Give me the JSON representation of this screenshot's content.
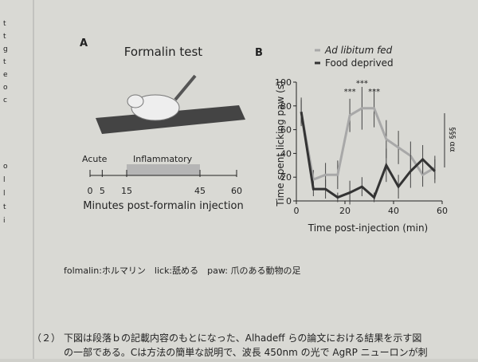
{
  "margin_letters": [
    "t",
    "t",
    "g",
    "t",
    "e",
    "o",
    "c",
    "o",
    "l",
    "l",
    "t",
    "i"
  ],
  "panel_a": {
    "label": "A",
    "title": "Formalin test",
    "phases": [
      "Acute",
      "Inflammatory"
    ],
    "timeline_ticks": [
      0,
      5,
      15,
      45,
      60
    ],
    "xlabel": "Minutes post-formalin injection"
  },
  "chart_data": {
    "type": "line",
    "panel_label": "B",
    "xlabel": "Time post-injection (min)",
    "ylabel": "Time spent licking paw (s)",
    "xlim": [
      0,
      60
    ],
    "xticks": [
      0,
      20,
      40,
      60
    ],
    "ylim": [
      0,
      100
    ],
    "yticks": [
      0,
      20,
      40,
      60,
      80,
      100
    ],
    "series": [
      {
        "name": "Ad libitum fed",
        "color": "#a8a8a8",
        "x": [
          2,
          7,
          12,
          17,
          22,
          27,
          32,
          37,
          42,
          47,
          52,
          57
        ],
        "values": [
          75,
          18,
          22,
          22,
          72,
          78,
          78,
          52,
          45,
          38,
          22,
          28
        ],
        "errors": [
          12,
          8,
          10,
          12,
          14,
          18,
          16,
          16,
          14,
          12,
          10,
          10
        ]
      },
      {
        "name": "Food deprived",
        "color": "#333333",
        "x": [
          2,
          7,
          12,
          17,
          22,
          27,
          32,
          37,
          42,
          47,
          52,
          57
        ],
        "values": [
          75,
          10,
          10,
          3,
          7,
          12,
          3,
          30,
          12,
          25,
          35,
          25
        ],
        "errors": [
          10,
          6,
          8,
          4,
          10,
          8,
          4,
          14,
          10,
          14,
          12,
          10
        ]
      }
    ],
    "annotations": [
      {
        "x": 22,
        "y": 90,
        "text": "***"
      },
      {
        "x": 27,
        "y": 97,
        "text": "***"
      },
      {
        "x": 32,
        "y": 90,
        "text": "***"
      }
    ],
    "side_annotation": "§§§ αα"
  },
  "gloss": "folmalin:ホルマリン　lick:舐める　paw: 爪のある動物の足",
  "question": {
    "number": "（２）",
    "lines": [
      "下図は段落ｂの記載内容のもとになった、Alhadeff らの論文における結果を示す図",
      "の一部である。Cは方法の簡単な説明で、波長 450nm の光で AgRP ニューロンが刺"
    ]
  }
}
